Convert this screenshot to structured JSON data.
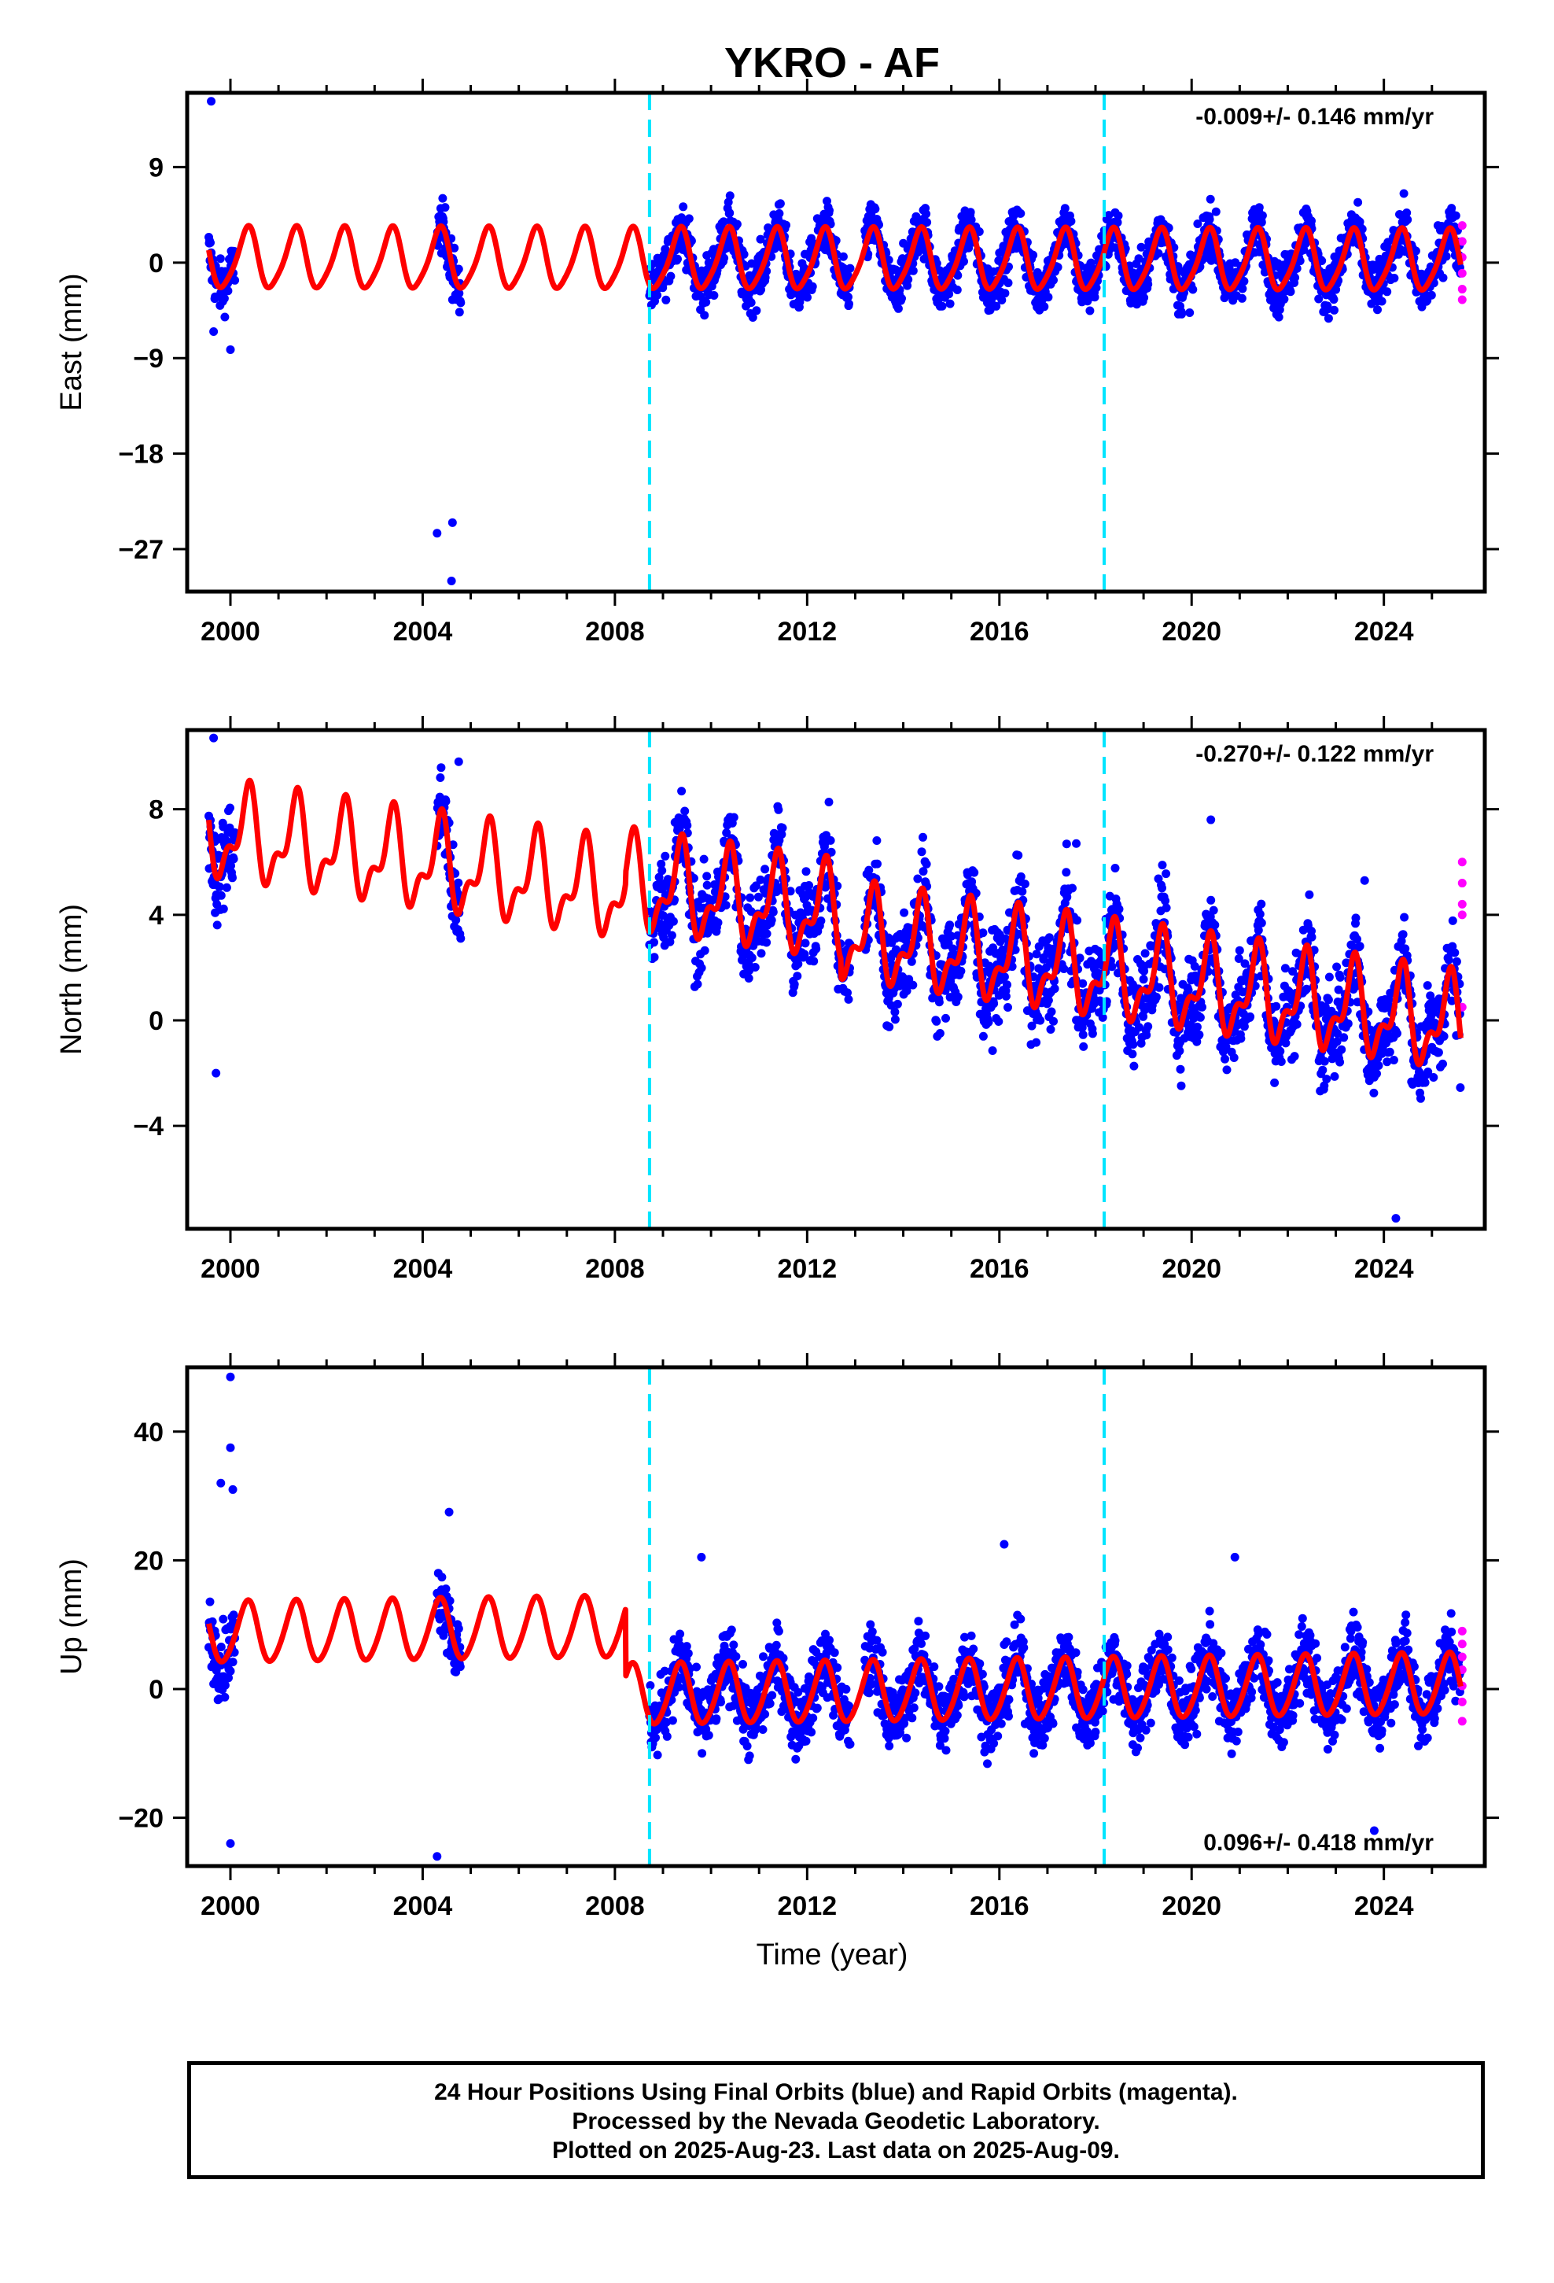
{
  "title": "YKRO - AF",
  "xlabel": "Time (year)",
  "colors": {
    "final": "#0000ff",
    "rapid": "#ff00ff",
    "model": "#ff0000",
    "offsets": "#00e5ff"
  },
  "footer": {
    "line1": "24 Hour Positions Using Final Orbits (blue) and Rapid Orbits (magenta).",
    "line2": "Processed by the Nevada Geodetic Laboratory.",
    "line3": "Plotted on 2025-Aug-23. Last data on 2025-Aug-09."
  },
  "chart_data": [
    {
      "type": "scatter",
      "name": "east",
      "ylabel": "East (mm)",
      "rate_text": "-0.009+/- 0.146 mm/yr",
      "xlim": [
        1999.1,
        2026.1
      ],
      "ylim": [
        -31,
        16
      ],
      "xticks": [
        2000,
        2004,
        2008,
        2012,
        2016,
        2020,
        2024
      ],
      "yticks": [
        9,
        0,
        -9,
        -18,
        -27
      ],
      "ytick_labels": [
        "9",
        "0",
        "−9",
        "−18",
        "−27"
      ],
      "offset_epochs": [
        2008.72,
        2018.18
      ],
      "data_spans": [
        [
          1999.55,
          2000.1
        ],
        [
          2004.3,
          2004.8
        ],
        [
          2008.72,
          2012.9
        ],
        [
          2013.2,
          2025.6
        ]
      ],
      "spread": 2.2,
      "outliers": [
        [
          1999.6,
          15.2
        ],
        [
          1999.65,
          -6.5
        ],
        [
          2000.0,
          -8.2
        ],
        [
          2004.3,
          -25.5
        ],
        [
          2004.6,
          -30.0
        ],
        [
          2004.62,
          -24.5
        ],
        [
          2004.62,
          -3.5
        ]
      ],
      "rapid": [
        [
          2025.63,
          3.5
        ],
        [
          2025.63,
          2.0
        ],
        [
          2025.63,
          0.5
        ],
        [
          2025.63,
          -1.0
        ],
        [
          2025.63,
          -2.5
        ],
        [
          2025.63,
          -3.5
        ]
      ],
      "model": {
        "t0": 2013.0,
        "segment_offsets": [
          0.2,
          0.2,
          0.2,
          0.2
        ],
        "trend": -0.009,
        "annual_amp": 2.8,
        "semiannual_amp": 0.5
      },
      "grid": false
    },
    {
      "type": "scatter",
      "name": "north",
      "ylabel": "North (mm)",
      "rate_text": "-0.270+/- 0.122 mm/yr",
      "xlim": [
        1999.1,
        2026.1
      ],
      "ylim": [
        -7.9,
        11.0
      ],
      "xticks": [
        2000,
        2004,
        2008,
        2012,
        2016,
        2020,
        2024
      ],
      "yticks": [
        8,
        4,
        0,
        -4
      ],
      "ytick_labels": [
        "8",
        "4",
        "0",
        "−4"
      ],
      "offset_epochs": [
        2008.72,
        2018.18
      ],
      "data_spans": [
        [
          1999.55,
          2000.1
        ],
        [
          2004.3,
          2004.8
        ],
        [
          2008.72,
          2012.9
        ],
        [
          2013.2,
          2025.6
        ]
      ],
      "spread": 1.6,
      "outliers": [
        [
          1999.65,
          10.7
        ],
        [
          1999.7,
          -2.0
        ],
        [
          2004.75,
          9.8
        ],
        [
          2009.25,
          7.5
        ],
        [
          2017.6,
          6.7
        ],
        [
          2020.4,
          7.6
        ],
        [
          2023.6,
          5.3
        ],
        [
          2024.25,
          -7.5
        ]
      ],
      "rapid": [
        [
          2025.63,
          6.0
        ],
        [
          2025.63,
          5.2
        ],
        [
          2025.63,
          4.4
        ],
        [
          2025.63,
          4.0
        ],
        [
          2025.63,
          0.5
        ]
      ],
      "model": {
        "t0": 2013.0,
        "segment_offsets": [
          3.5,
          3.5,
          3.9,
          3.2
        ],
        "trend": -0.27,
        "annual_amp": 1.5,
        "semiannual_amp": 0.8
      },
      "grid": false
    },
    {
      "type": "scatter",
      "name": "up",
      "ylabel": "Up (mm)",
      "rate_text": "0.096+/- 0.418 mm/yr",
      "xlim": [
        1999.1,
        2026.1
      ],
      "ylim": [
        -27.5,
        50.0
      ],
      "xticks": [
        2000,
        2004,
        2008,
        2012,
        2016,
        2020,
        2024
      ],
      "yticks": [
        40,
        20,
        0,
        -20
      ],
      "ytick_labels": [
        "40",
        "20",
        "0",
        "−20"
      ],
      "offset_epochs": [
        2008.72,
        2018.18
      ],
      "data_spans": [
        [
          1999.55,
          2000.1
        ],
        [
          2004.3,
          2004.8
        ],
        [
          2008.72,
          2012.9
        ],
        [
          2013.2,
          2025.6
        ]
      ],
      "spread": 5.0,
      "outliers": [
        [
          2000.0,
          48.5
        ],
        [
          2000.0,
          37.5
        ],
        [
          1999.8,
          32.0
        ],
        [
          2000.05,
          31.0
        ],
        [
          2000.0,
          -24.0
        ],
        [
          2004.3,
          -26.0
        ],
        [
          2004.55,
          27.5
        ],
        [
          2009.8,
          20.5
        ],
        [
          2016.1,
          22.5
        ],
        [
          2020.9,
          20.5
        ],
        [
          2023.8,
          -22.0
        ]
      ],
      "rapid": [
        [
          2025.63,
          9.0
        ],
        [
          2025.63,
          7.0
        ],
        [
          2025.63,
          5.0
        ],
        [
          2025.63,
          3.0
        ],
        [
          2025.63,
          0.5
        ],
        [
          2025.63,
          -2.0
        ],
        [
          2025.63,
          -5.0
        ]
      ],
      "model": {
        "t0": 2013.0,
        "segment_offsets": [
          10.0,
          10.0,
          -0.5,
          -0.5
        ],
        "trend": 0.096,
        "annual_amp": 4.7,
        "semiannual_amp": 0.5
      },
      "grid": false
    }
  ]
}
